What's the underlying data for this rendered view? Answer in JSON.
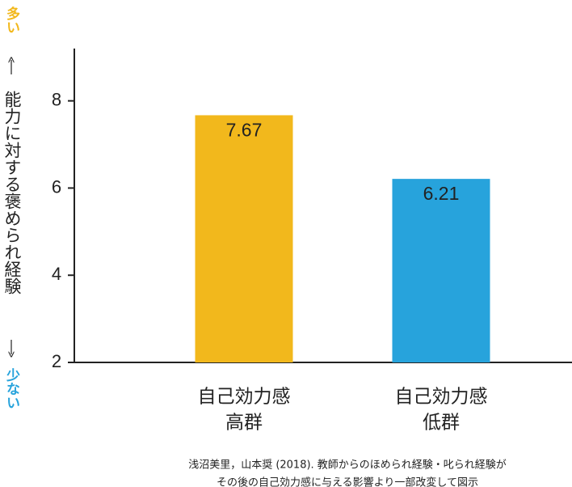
{
  "chart_data": {
    "type": "bar",
    "y_label": {
      "top": "多い",
      "main": "能力に対する褒められ経験",
      "bottom": "少ない"
    },
    "categories": [
      [
        "自己効力感",
        "高群"
      ],
      [
        "自己効力感",
        "低群"
      ]
    ],
    "values": [
      7.67,
      6.21
    ],
    "colors": [
      "#f2b81c",
      "#27a3dc"
    ],
    "ylim": [
      2,
      9.2
    ],
    "yticks": [
      2,
      4,
      6,
      8
    ],
    "caption": [
      "浅沼美里，山本奨 (2018). 教師からのほめられ経験・叱られ経験が",
      "その後の自己効力感に与える影響より一部改変して図示"
    ]
  }
}
